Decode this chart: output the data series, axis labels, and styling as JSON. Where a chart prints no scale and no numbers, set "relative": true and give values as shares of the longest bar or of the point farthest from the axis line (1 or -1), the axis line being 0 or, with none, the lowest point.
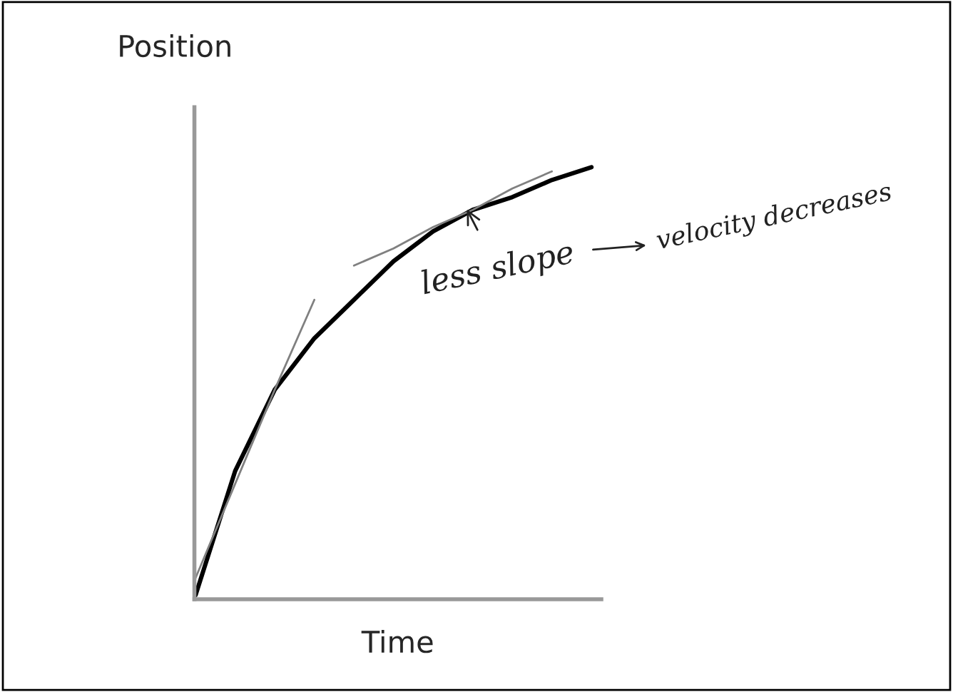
{
  "chart_data": {
    "type": "line",
    "relative": true,
    "ylabel": "Position",
    "xlabel": "Time",
    "categories": [
      null,
      null,
      null,
      null,
      null,
      null,
      null,
      null,
      null,
      null,
      null
    ],
    "series": [
      {
        "color": "#000000",
        "values": [
          0,
          0.29,
          0.48,
          0.6,
          0.69,
          0.78,
          0.85,
          0.9,
          0.93,
          0.97,
          1
        ]
      },
      {
        "color": "#808080",
        "values": [
          0.04,
          0.26,
          0.48,
          0.69,
          null,
          null,
          null,
          null,
          null,
          null,
          null
        ]
      },
      {
        "color": "#808080",
        "values": [
          null,
          null,
          null,
          null,
          0.77,
          0.81,
          0.86,
          0.9,
          0.95,
          0.99,
          null
        ]
      }
    ],
    "annotations": [
      "less slope",
      "velocity decreases"
    ],
    "grid": false,
    "legend": false
  }
}
